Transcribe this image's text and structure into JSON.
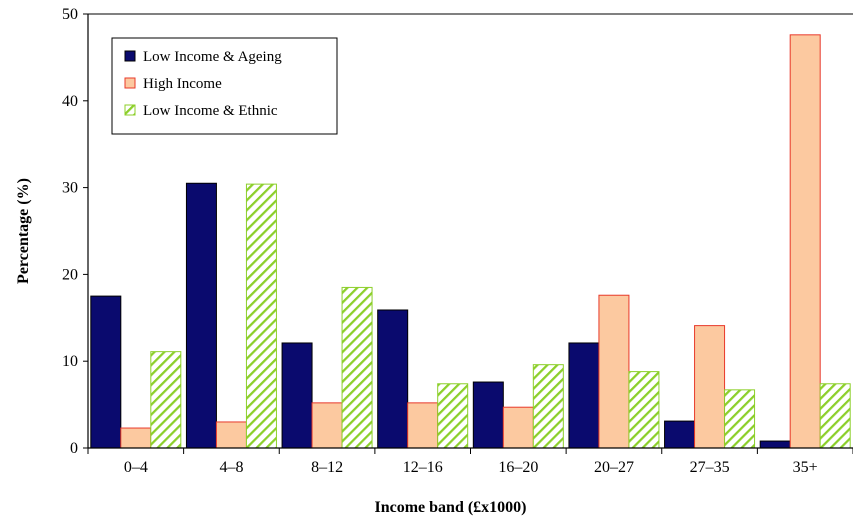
{
  "chart_data": {
    "type": "bar",
    "title": "",
    "xlabel": "Income band (£x1000)",
    "ylabel": "Percentage (%)",
    "ylim": [
      0,
      50
    ],
    "yticks": [
      0,
      10,
      20,
      30,
      40,
      50
    ],
    "grid": false,
    "legend_position": "top-left",
    "categories": [
      "0–4",
      "4–8",
      "8–12",
      "12–16",
      "16–20",
      "20–27",
      "27–35",
      "35+"
    ],
    "series": [
      {
        "name": "Low Income & Ageing",
        "values": [
          17.5,
          30.5,
          12.1,
          15.9,
          7.6,
          12.1,
          3.1,
          0.8
        ],
        "color": "#0a0a6e",
        "pattern": "solid"
      },
      {
        "name": "High Income",
        "values": [
          2.3,
          3.0,
          5.2,
          5.2,
          4.7,
          17.6,
          14.1,
          47.6
        ],
        "color": "#fcc9a0",
        "edge": "#e8392a",
        "pattern": "solid"
      },
      {
        "name": "Low Income & Ethnic",
        "values": [
          11.1,
          30.4,
          18.5,
          7.4,
          9.6,
          8.8,
          6.7,
          7.4
        ],
        "color": "#8ccf2a",
        "pattern": "hatch"
      }
    ]
  }
}
